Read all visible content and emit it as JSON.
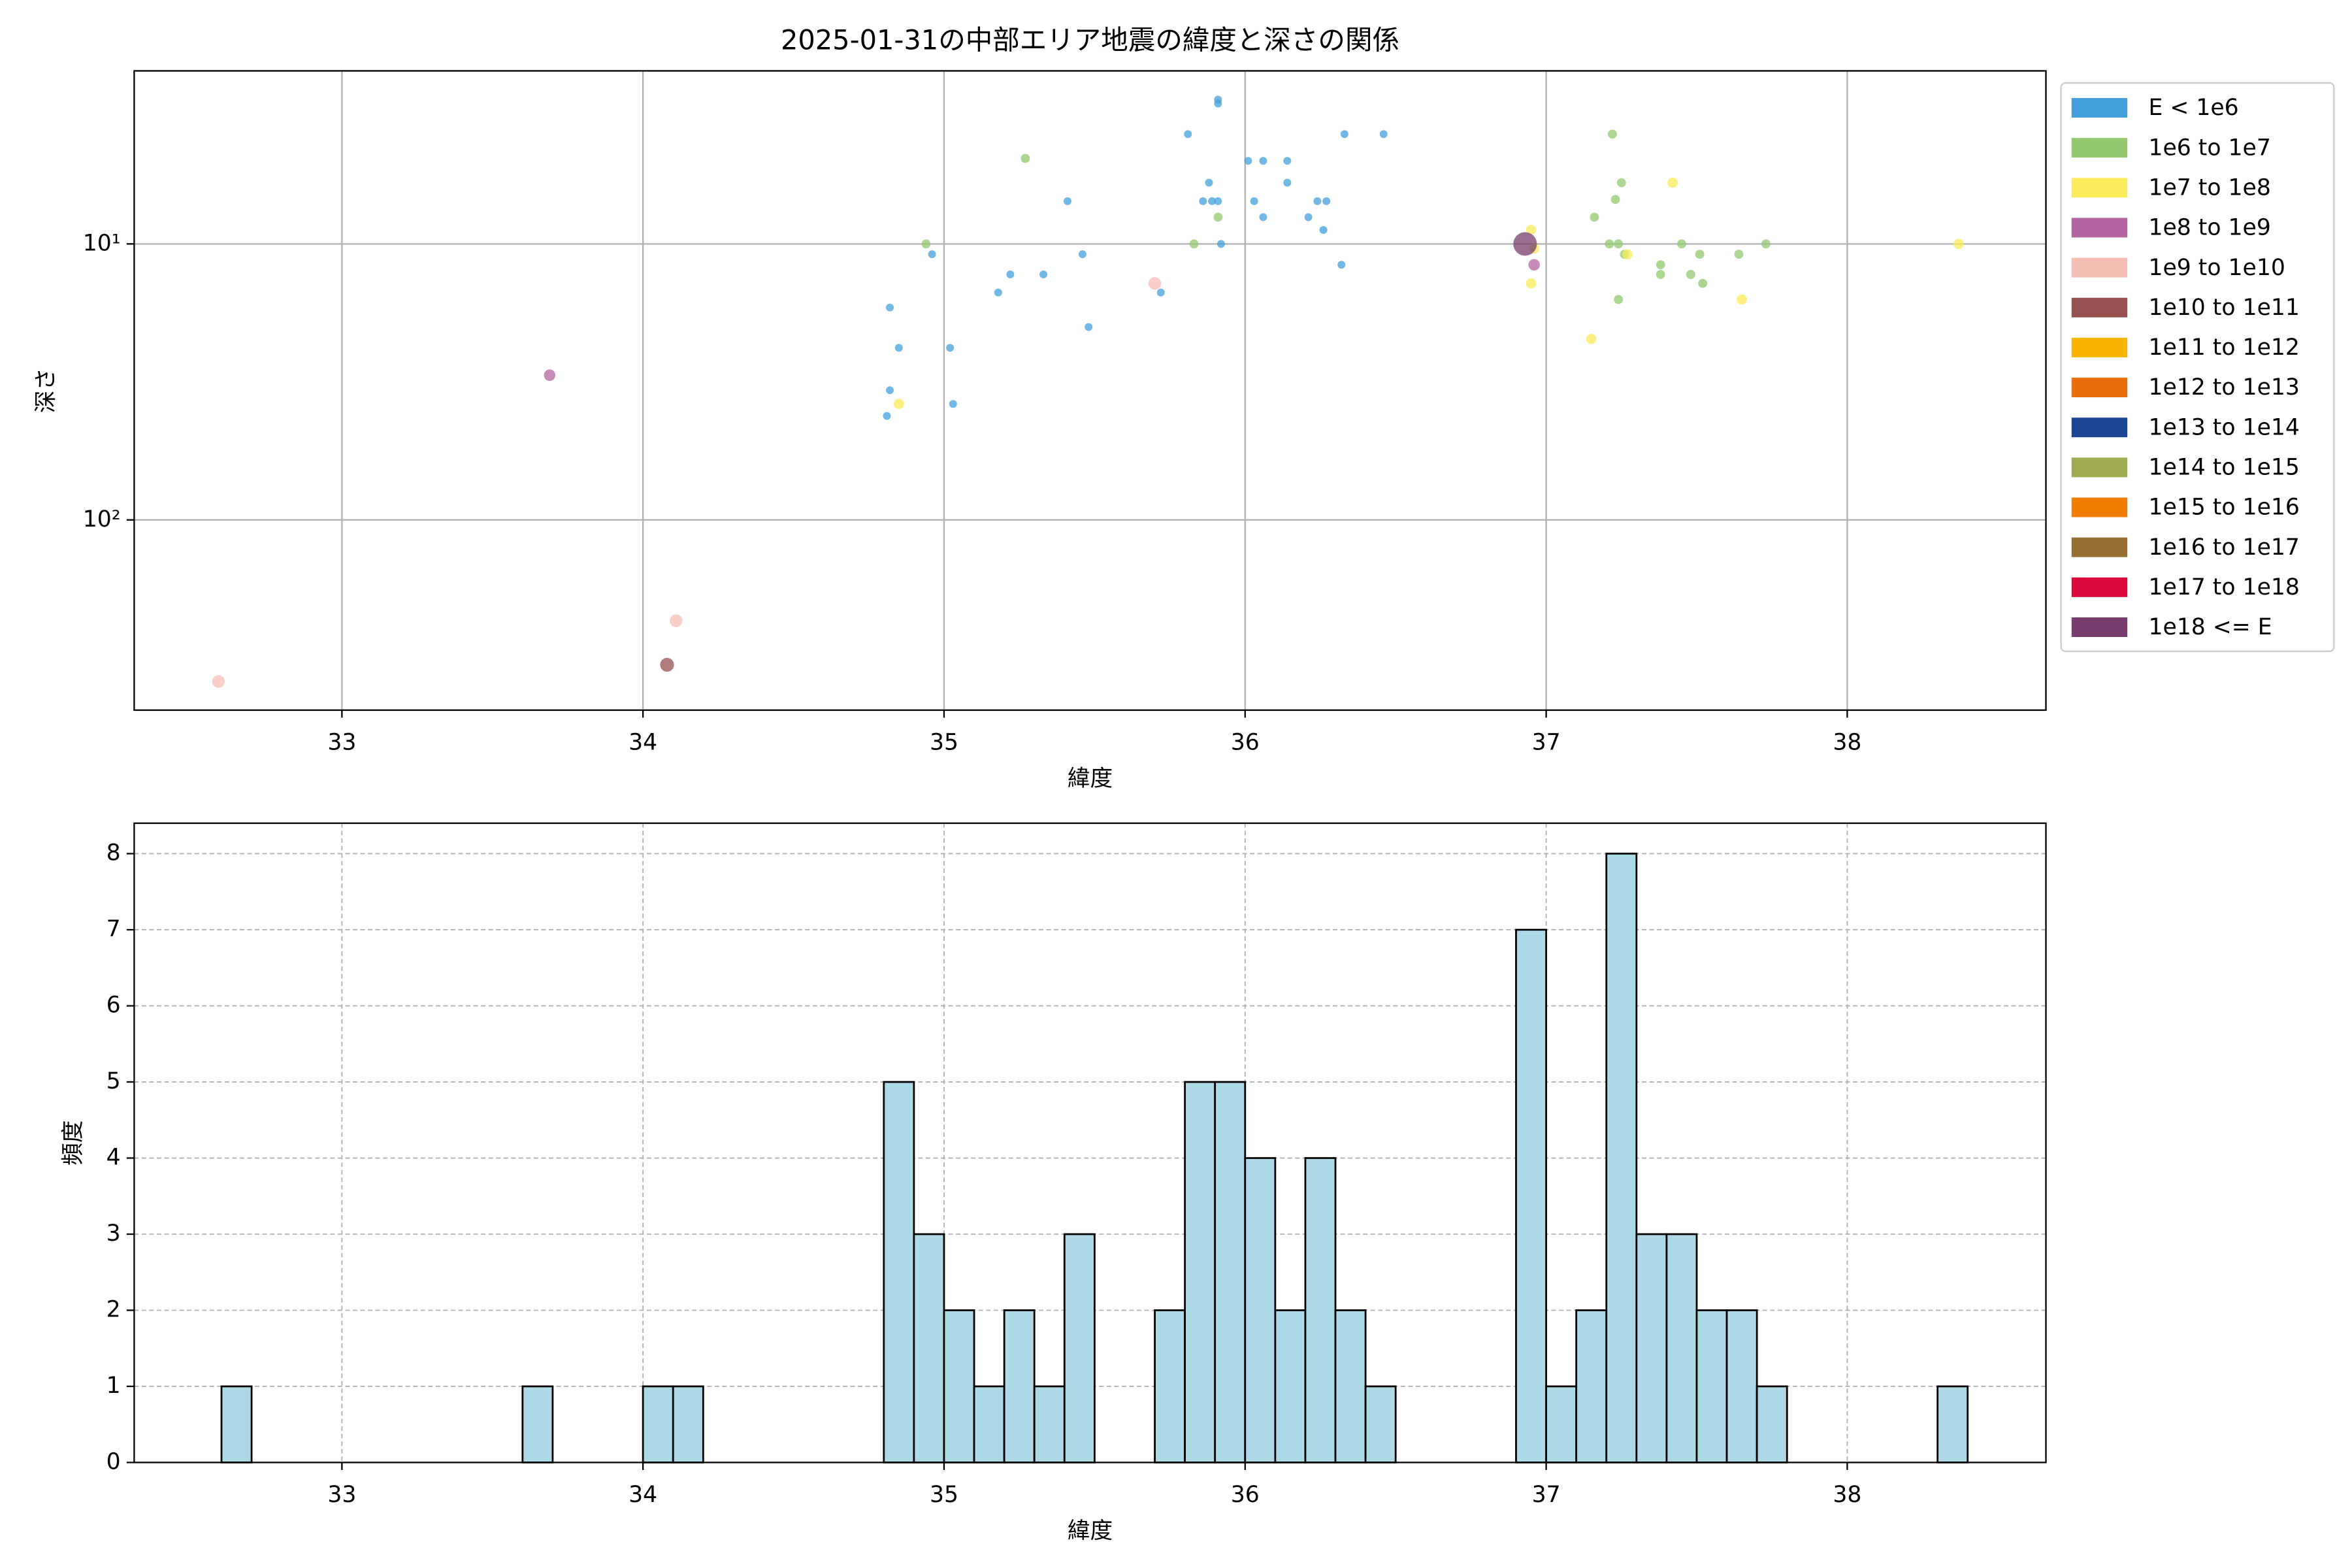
{
  "chart_data": [
    {
      "type": "scatter",
      "title": "2025-01-31の中部エリア地震の緯度と深さの関係",
      "xlabel": "緯度",
      "ylabel": "深さ",
      "xlim": [
        32.31,
        38.66
      ],
      "ylim": [
        2.36,
        489
      ],
      "log_y": true,
      "invert_y": true,
      "grid": true,
      "legend": "outside-right",
      "xticks": [
        33,
        34,
        35,
        36,
        37,
        38
      ],
      "yticks": [
        {
          "value": 10,
          "label": "10¹"
        },
        {
          "value": 100,
          "label": "10²"
        }
      ],
      "series": [
        {
          "name": "E < 1e6",
          "color": "#41a0dc",
          "x": [
            35.91,
            35.91,
            35.81,
            36.33,
            36.46,
            36.01,
            36.06,
            36.14,
            35.88,
            36.14,
            35.41,
            35.86,
            35.89,
            35.91,
            36.24,
            36.27,
            36.03,
            36.06,
            36.21,
            36.26,
            35.92,
            34.96,
            35.46,
            36.32,
            35.22,
            35.33,
            35.18,
            35.72,
            34.82,
            35.48,
            34.85,
            35.02,
            34.82,
            35.03,
            34.81
          ],
          "values": [
            3.0,
            3.1,
            4.0,
            4.0,
            4.0,
            5.0,
            5.0,
            5.0,
            6.0,
            6.0,
            7.0,
            7.0,
            7.0,
            7.0,
            7.0,
            7.0,
            7.0,
            8.0,
            8.0,
            8.9,
            10,
            10.9,
            10.9,
            11.9,
            12.9,
            12.9,
            15.0,
            15.0,
            17.0,
            20.0,
            23.8,
            23.8,
            33.9,
            38,
            42
          ]
        },
        {
          "name": "1e6 to 1e7",
          "color": "#92c86e",
          "x": [
            35.27,
            37.22,
            37.25,
            37.23,
            37.16,
            35.91,
            34.94,
            35.83,
            37.21,
            37.24,
            37.45,
            37.73,
            37.26,
            37.51,
            37.64,
            37.38,
            37.38,
            37.48,
            37.52,
            37.24
          ],
          "values": [
            4.9,
            4.0,
            6.0,
            6.9,
            8.0,
            8.0,
            10,
            10,
            10,
            10,
            10,
            10,
            10.9,
            10.9,
            10.9,
            11.9,
            12.9,
            12.9,
            13.9,
            15.9
          ]
        },
        {
          "name": "1e7 to 1e8",
          "color": "#fbeb5a",
          "x": [
            36.95,
            36.96,
            36.95,
            37.42,
            37.27,
            38.37,
            37.65,
            37.15,
            34.85
          ],
          "values": [
            8.9,
            10.4,
            13.9,
            6.0,
            10.9,
            10,
            15.9,
            22.1,
            38
          ]
        },
        {
          "name": "1e8 to 1e9",
          "color": "#b464a0",
          "x": [
            36.96,
            33.69
          ],
          "values": [
            11.9,
            29.9
          ]
        },
        {
          "name": "1e9 to 1e10",
          "color": "#f5beb4",
          "x": [
            35.7,
            34.11,
            32.59
          ],
          "values": [
            13.9,
            232,
            385
          ]
        },
        {
          "name": "1e10 to 1e11",
          "color": "#965050",
          "x": [
            34.08
          ],
          "values": [
            335
          ]
        },
        {
          "name": "1e11 to 1e12",
          "color": "#f8b400",
          "x": [],
          "values": []
        },
        {
          "name": "1e12 to 1e13",
          "color": "#eb6e0a",
          "x": [],
          "values": []
        },
        {
          "name": "1e13 to 1e14",
          "color": "#1e4696",
          "x": [],
          "values": []
        },
        {
          "name": "1e14 to 1e15",
          "color": "#a0aa50",
          "x": [],
          "values": []
        },
        {
          "name": "1e15 to 1e16",
          "color": "#f07d00",
          "x": [],
          "values": []
        },
        {
          "name": "1e16 to 1e17",
          "color": "#966e32",
          "x": [],
          "values": []
        },
        {
          "name": "1e17 to 1e18",
          "color": "#dc0a3c",
          "x": [],
          "values": []
        },
        {
          "name": "1e18 <= E",
          "color": "#783c6e",
          "x": [
            36.93
          ],
          "values": [
            10
          ]
        }
      ]
    },
    {
      "type": "histogram",
      "xlabel": "緯度",
      "ylabel": "頻度",
      "color": "#add8e6",
      "edgecolor": "#000000",
      "xlim": [
        32.31,
        38.66
      ],
      "ylim": [
        0,
        8.4
      ],
      "grid": true,
      "grid_style": "dashed",
      "xticks": [
        33,
        34,
        35,
        36,
        37,
        38
      ],
      "yticks": [
        0,
        1,
        2,
        3,
        4,
        5,
        6,
        7,
        8
      ],
      "bins": [
        32.6,
        32.7,
        32.8,
        32.9,
        33.0,
        33.1,
        33.2,
        33.3,
        33.4,
        33.5,
        33.6,
        33.7,
        33.8,
        33.9,
        34.0,
        34.1,
        34.2,
        34.3,
        34.4,
        34.5,
        34.6,
        34.7,
        34.8,
        34.9,
        35.0,
        35.1,
        35.2,
        35.3,
        35.4,
        35.5,
        35.6,
        35.7,
        35.8,
        35.9,
        36.0,
        36.1,
        36.2,
        36.3,
        36.4,
        36.5,
        36.6,
        36.7,
        36.8,
        36.9,
        37.0,
        37.1,
        37.2,
        37.3,
        37.4,
        37.5,
        37.6,
        37.7,
        37.8,
        37.9,
        38.0,
        38.1,
        38.2,
        38.3,
        38.4
      ],
      "values": [
        1,
        0,
        0,
        0,
        0,
        0,
        0,
        0,
        0,
        0,
        1,
        0,
        0,
        0,
        1,
        1,
        0,
        0,
        0,
        0,
        0,
        0,
        5,
        3,
        2,
        1,
        2,
        1,
        3,
        0,
        0,
        2,
        5,
        5,
        4,
        2,
        4,
        2,
        1,
        0,
        0,
        0,
        0,
        7,
        1,
        2,
        8,
        3,
        3,
        2,
        2,
        1,
        0,
        0,
        0,
        0,
        0,
        1
      ]
    }
  ]
}
